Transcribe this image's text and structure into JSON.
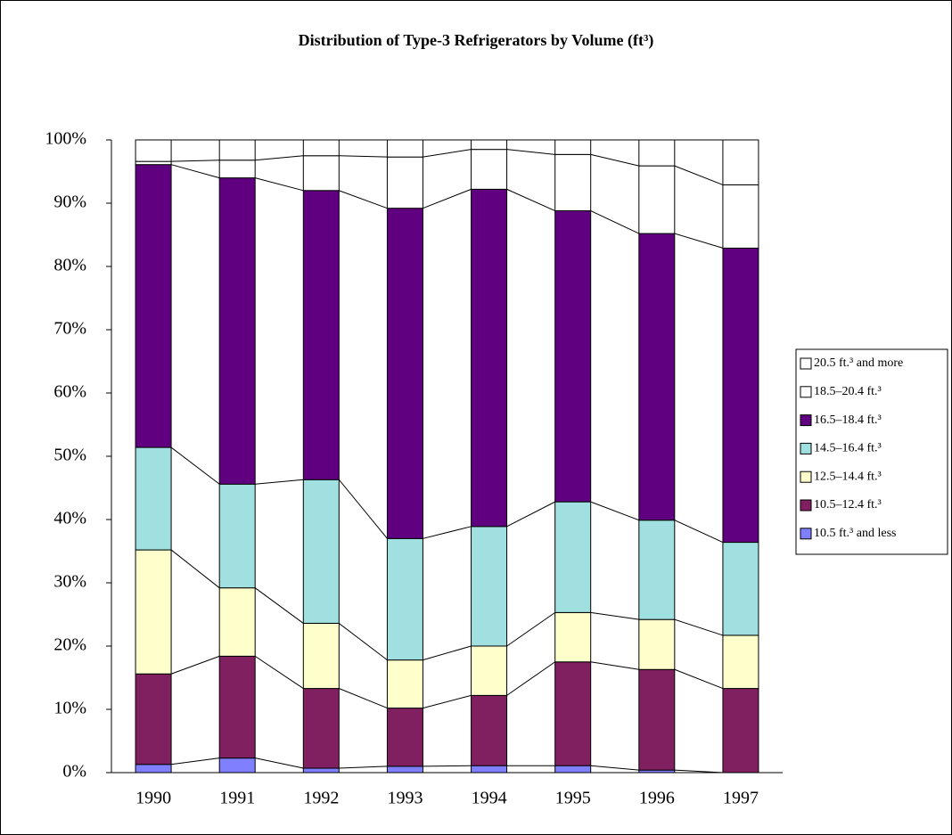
{
  "chart_data": {
    "type": "stacked_bar_100",
    "title": "Distribution of Type-3 Refrigerators by Volume (ft³)",
    "categories": [
      "1990",
      "1991",
      "1992",
      "1993",
      "1994",
      "1995",
      "1996",
      "1997"
    ],
    "series": [
      {
        "name": "10.5 ft.³ and less",
        "color": "#8080ff",
        "values": [
          1.3,
          2.3,
          0.7,
          1.0,
          1.1,
          1.1,
          0.4,
          0
        ]
      },
      {
        "name": "10.5–12.4 ft.³",
        "color": "#802060",
        "values": [
          14.3,
          16.1,
          12.6,
          9.2,
          11.1,
          16.4,
          15.9,
          13.3
        ]
      },
      {
        "name": "12.5–14.4 ft.³",
        "color": "#ffffcc",
        "values": [
          19.6,
          10.8,
          10.3,
          7.6,
          7.8,
          7.8,
          7.9,
          8.4
        ]
      },
      {
        "name": "14.5–16.4 ft.³",
        "color": "#a0e0e0",
        "values": [
          16.2,
          16.4,
          22.7,
          19.2,
          18.9,
          17.5,
          15.7,
          14.7
        ]
      },
      {
        "name": "16.5–18.4 ft.³",
        "color": "#600080",
        "values": [
          44.7,
          48.4,
          45.7,
          52.2,
          53.3,
          46.0,
          45.3,
          46.5
        ]
      },
      {
        "name": "18.5–20.4 ft.³",
        "color": "#ffffff",
        "values": [
          0.5,
          2.8,
          5.5,
          8.1,
          6.3,
          8.9,
          10.7,
          10.0
        ]
      },
      {
        "name": "20.5 ft.³ and more",
        "color": "#ffffff",
        "values": [
          3.4,
          3.2,
          2.5,
          2.7,
          1.5,
          2.3,
          4.1,
          7.1
        ]
      }
    ],
    "ylim": [
      0,
      100
    ],
    "yticks": [
      {
        "value": 0,
        "label": "0%"
      },
      {
        "value": 10,
        "label": "10%"
      },
      {
        "value": 20,
        "label": "20%"
      },
      {
        "value": 30,
        "label": "30%"
      },
      {
        "value": 40,
        "label": "40%"
      },
      {
        "value": 50,
        "label": "50%"
      },
      {
        "value": 60,
        "label": "60%"
      },
      {
        "value": 70,
        "label": "70%"
      },
      {
        "value": 80,
        "label": "80%"
      },
      {
        "value": 90,
        "label": "90%"
      },
      {
        "value": 100,
        "label": "100%"
      }
    ],
    "legend": "right",
    "grid": false
  }
}
